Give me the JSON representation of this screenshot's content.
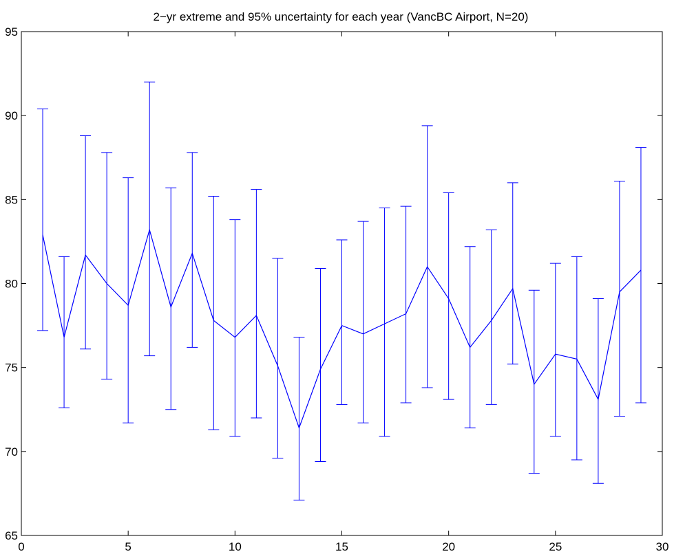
{
  "chart_data": {
    "type": "line",
    "title": "2−yr extreme and 95% uncertainty for each year (VancBC Airport, N=20)",
    "xlabel": "",
    "ylabel": "",
    "xlim": [
      0,
      30
    ],
    "ylim": [
      65,
      95
    ],
    "xticks": [
      0,
      5,
      10,
      15,
      20,
      25,
      30
    ],
    "yticks": [
      65,
      70,
      75,
      80,
      85,
      90,
      95
    ],
    "grid": false,
    "line_color": "#0000ff",
    "series": [
      {
        "x": [
          1,
          2,
          3,
          4,
          5,
          6,
          7,
          8,
          9,
          10,
          11,
          12,
          13,
          14,
          15,
          16,
          17,
          18,
          19,
          20,
          21,
          22,
          23,
          24,
          25,
          26,
          27,
          28,
          29
        ],
        "values": [
          82.9,
          76.8,
          81.7,
          80.0,
          78.7,
          83.2,
          78.6,
          81.8,
          77.8,
          76.8,
          78.1,
          75.1,
          71.4,
          74.9,
          77.5,
          77.0,
          77.6,
          78.2,
          81.0,
          79.1,
          76.2,
          77.8,
          79.7,
          74.0,
          75.8,
          75.5,
          73.1,
          79.5,
          80.8
        ],
        "lower": [
          77.2,
          72.6,
          76.1,
          74.3,
          71.7,
          75.7,
          72.5,
          76.2,
          71.3,
          70.9,
          72.0,
          69.6,
          67.1,
          69.4,
          72.8,
          71.7,
          70.9,
          72.9,
          73.8,
          73.1,
          71.4,
          72.8,
          75.2,
          68.7,
          70.9,
          69.5,
          68.1,
          72.1,
          72.9
        ],
        "upper": [
          90.4,
          81.6,
          88.8,
          87.8,
          86.3,
          92.0,
          85.7,
          87.8,
          85.2,
          83.8,
          85.6,
          81.5,
          76.8,
          80.9,
          82.6,
          83.7,
          84.5,
          84.6,
          89.4,
          85.4,
          82.2,
          83.2,
          86.0,
          79.6,
          81.2,
          81.6,
          79.1,
          86.1,
          88.1
        ]
      }
    ]
  }
}
